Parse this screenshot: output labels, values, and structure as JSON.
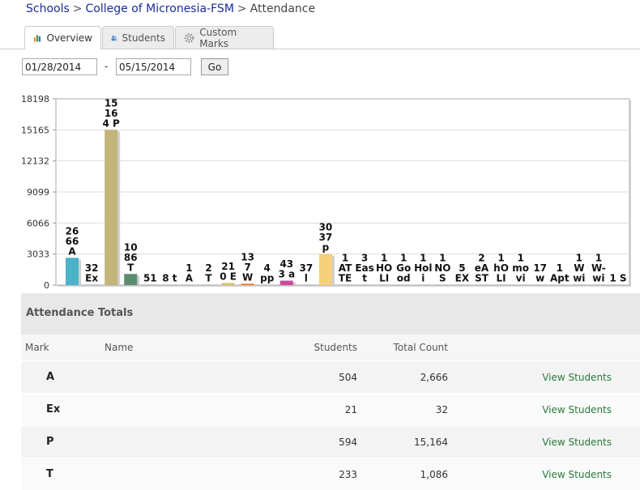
{
  "breadcrumb": {
    "schools": "Schools",
    "college": "College of Micronesia-FSM",
    "current": "Attendance",
    "sep": ">"
  },
  "tabs": [
    {
      "label": "Overview",
      "icon": "bar-chart-icon",
      "active": true
    },
    {
      "label": "Students",
      "icon": "users-icon",
      "active": false
    },
    {
      "label": "Custom Marks",
      "icon": "gear-icon",
      "active": false
    }
  ],
  "filters": {
    "start_date": "01/28/2014",
    "dash": "-",
    "end_date": "05/15/2014",
    "go_label": "Go"
  },
  "chart_data": {
    "type": "bar",
    "ylim": [
      0,
      18198
    ],
    "yticks": [
      "0",
      "3033",
      "6066",
      "9099",
      "12132",
      "15165",
      "18198"
    ],
    "grid": true,
    "bars": [
      {
        "label": [
          "26",
          "66",
          "A"
        ],
        "value": 2666,
        "color": "#4ab3c8"
      },
      {
        "label": [
          "32",
          "Ex"
        ],
        "value": 32,
        "color": "#7cb4d8"
      },
      {
        "label": [
          "15",
          "16",
          "4 P"
        ],
        "value": 15164,
        "color": "#c3b47a"
      },
      {
        "label": [
          "10",
          "86",
          "T"
        ],
        "value": 1086,
        "color": "#5a8c6e"
      },
      {
        "label": [
          "51"
        ],
        "value": 51,
        "color": "#aaaaaa"
      },
      {
        "label": [
          "8 t"
        ],
        "value": 8,
        "color": "#aaaaaa"
      },
      {
        "label": [
          "1",
          "A"
        ],
        "value": 1,
        "color": "#aaaaaa"
      },
      {
        "label": [
          "2",
          "T"
        ],
        "value": 2,
        "color": "#aaaaaa"
      },
      {
        "label": [
          "21",
          "0 E"
        ],
        "value": 210,
        "color": "#d9c46a"
      },
      {
        "label": [
          "13",
          "7",
          "W"
        ],
        "value": 137,
        "color": "#f07a2a"
      },
      {
        "label": [
          "4",
          "pp"
        ],
        "value": 4,
        "color": "#aaaaaa"
      },
      {
        "label": [
          "43",
          "3 a"
        ],
        "value": 433,
        "color": "#c84aa0"
      },
      {
        "label": [
          "37",
          "l"
        ],
        "value": 37,
        "color": "#aaaaaa"
      },
      {
        "label": [
          "30",
          "37",
          "p"
        ],
        "value": 3037,
        "color": "#f5cf7a"
      },
      {
        "label": [
          "1",
          "AT",
          "TE"
        ],
        "value": 1,
        "color": "#aaaaaa"
      },
      {
        "label": [
          "3",
          "Eas",
          "t"
        ],
        "value": 3,
        "color": "#aaaaaa"
      },
      {
        "label": [
          "1",
          "HO",
          "LI"
        ],
        "value": 1,
        "color": "#aaaaaa"
      },
      {
        "label": [
          "1",
          "Go",
          "od"
        ],
        "value": 1,
        "color": "#aaaaaa"
      },
      {
        "label": [
          "1",
          "Hol",
          "i"
        ],
        "value": 1,
        "color": "#aaaaaa"
      },
      {
        "label": [
          "1",
          "NO",
          "S"
        ],
        "value": 1,
        "color": "#aaaaaa"
      },
      {
        "label": [
          "5",
          "EX"
        ],
        "value": 5,
        "color": "#aaaaaa"
      },
      {
        "label": [
          "2",
          "eA",
          "ST"
        ],
        "value": 2,
        "color": "#aaaaaa"
      },
      {
        "label": [
          "1",
          "hO",
          "LI"
        ],
        "value": 1,
        "color": "#aaaaaa"
      },
      {
        "label": [
          "1",
          "mo",
          "vi"
        ],
        "value": 1,
        "color": "#aaaaaa"
      },
      {
        "label": [
          "17",
          "w"
        ],
        "value": 17,
        "color": "#aaaaaa"
      },
      {
        "label": [
          "1",
          "Apt"
        ],
        "value": 1,
        "color": "#aaaaaa"
      },
      {
        "label": [
          "1",
          "W",
          "wi"
        ],
        "value": 1,
        "color": "#aaaaaa"
      },
      {
        "label": [
          "1",
          "W-",
          "wi"
        ],
        "value": 1,
        "color": "#aaaaaa"
      },
      {
        "label": [
          "1 S"
        ],
        "value": 1,
        "color": "#aaaaaa"
      }
    ]
  },
  "totals": {
    "title": "Attendance Totals",
    "columns": {
      "mark": "Mark",
      "name": "Name",
      "students": "Students",
      "count": "Total Count"
    },
    "rows": [
      {
        "mark": "A",
        "name": "",
        "students": "504",
        "count": "2,666",
        "link": "View Students"
      },
      {
        "mark": "Ex",
        "name": "",
        "students": "21",
        "count": "32",
        "link": "View Students"
      },
      {
        "mark": "P",
        "name": "",
        "students": "594",
        "count": "15,164",
        "link": "View Students"
      },
      {
        "mark": "T",
        "name": "",
        "students": "233",
        "count": "1,086",
        "link": "View Students"
      }
    ]
  }
}
